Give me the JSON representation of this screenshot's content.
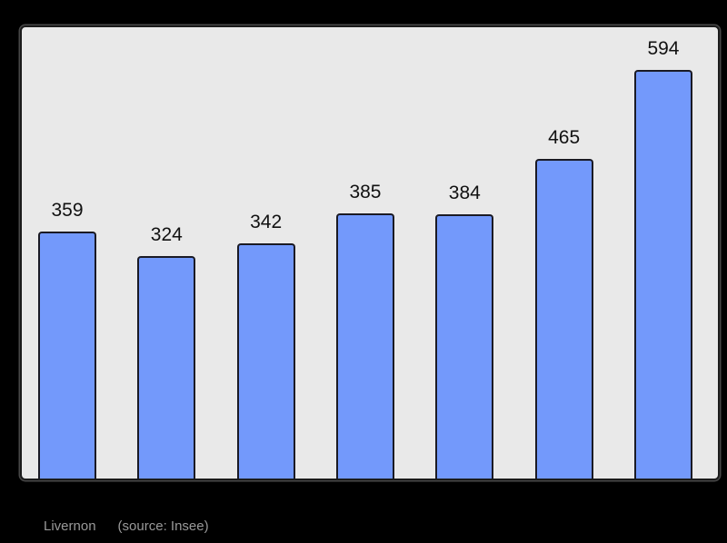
{
  "canvas": {
    "background": "#000000"
  },
  "chart": {
    "plot_background": "#e9e9e9",
    "frame_border_color": "#1b1b1b",
    "bar_fill": "#7399fb",
    "bar_border_color": "#1a1a24",
    "value_label_color": "#111111"
  },
  "chart_data": {
    "type": "bar",
    "categories": [
      "",
      "",
      "",
      "",
      "",
      "",
      ""
    ],
    "values": [
      359,
      324,
      342,
      385,
      384,
      465,
      594
    ],
    "title": "",
    "xlabel": "",
    "ylabel": "",
    "ylim": [
      0,
      656
    ],
    "grid": false,
    "legend": false,
    "data_labels": true,
    "bar_count": 7
  },
  "caption": {
    "name": "Livernon",
    "source": "(source: Insee)",
    "color": "#999999"
  }
}
